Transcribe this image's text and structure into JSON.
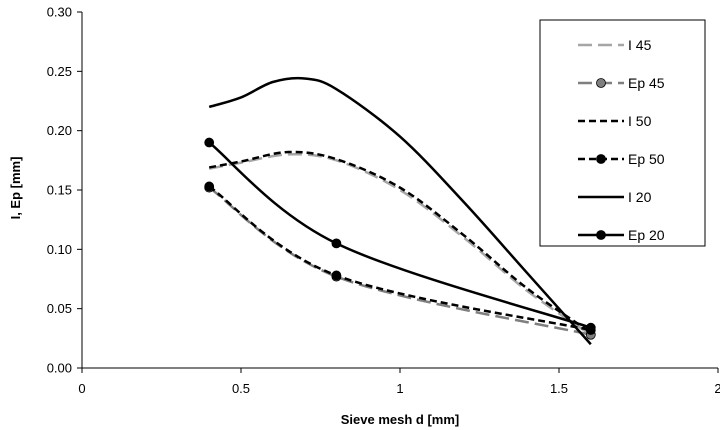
{
  "chart_data": {
    "type": "line",
    "title": "",
    "xlabel": "Sieve mesh d [mm]",
    "ylabel": "I, Ep [mm]",
    "xlim": [
      0,
      2
    ],
    "ylim": [
      0,
      0.3
    ],
    "xticks": [
      "0",
      "0.5",
      "1",
      "1.5",
      "2"
    ],
    "yticks": [
      "0.00",
      "0.05",
      "0.10",
      "0.15",
      "0.20",
      "0.25",
      "0.30"
    ],
    "grid": false,
    "legend_position": "top-right",
    "series": [
      {
        "name": "I 45",
        "color": "#a6a6a6",
        "dash": "long-dash",
        "markers": false,
        "x": [
          0.4,
          0.5,
          0.65,
          0.8,
          1.0,
          1.2,
          1.4,
          1.6
        ],
        "y": [
          0.168,
          0.173,
          0.18,
          0.175,
          0.15,
          0.11,
          0.065,
          0.028
        ]
      },
      {
        "name": "Ep 45",
        "color": "#7f7f7f",
        "dash": "long-dash",
        "markers": true,
        "x": [
          0.4,
          0.8,
          1.6
        ],
        "y": [
          0.152,
          0.077,
          0.028
        ]
      },
      {
        "name": "I 50",
        "color": "#000000",
        "dash": "short-dash",
        "markers": false,
        "x": [
          0.4,
          0.5,
          0.65,
          0.8,
          1.0,
          1.2,
          1.4,
          1.6
        ],
        "y": [
          0.169,
          0.174,
          0.182,
          0.176,
          0.152,
          0.112,
          0.067,
          0.03
        ]
      },
      {
        "name": "Ep 50",
        "color": "#000000",
        "dash": "short-dash",
        "markers": true,
        "x": [
          0.4,
          0.8,
          1.6
        ],
        "y": [
          0.153,
          0.078,
          0.032
        ]
      },
      {
        "name": "I 20",
        "color": "#000000",
        "dash": "solid",
        "markers": false,
        "x": [
          0.4,
          0.5,
          0.6,
          0.7,
          0.8,
          1.0,
          1.2,
          1.4,
          1.6
        ],
        "y": [
          0.22,
          0.228,
          0.241,
          0.244,
          0.235,
          0.195,
          0.14,
          0.08,
          0.02
        ]
      },
      {
        "name": "Ep 20",
        "color": "#000000",
        "dash": "solid",
        "markers": true,
        "x": [
          0.4,
          0.8,
          1.6
        ],
        "y": [
          0.19,
          0.105,
          0.034
        ]
      }
    ]
  }
}
